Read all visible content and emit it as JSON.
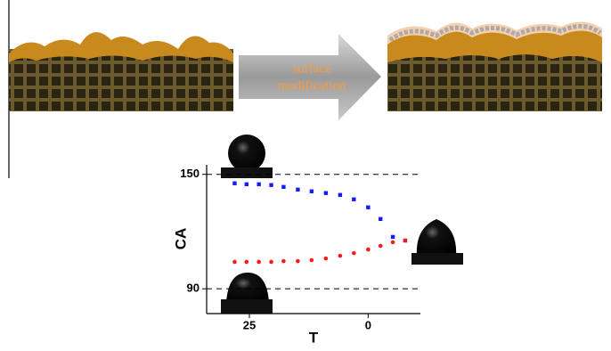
{
  "scheme": {
    "arrow_label": [
      "surface",
      "modification"
    ]
  },
  "chart_data": {
    "type": "scatter",
    "x_label": "T",
    "y_label": "CA",
    "x": [
      28.1,
      25.6,
      23.0,
      20.4,
      17.8,
      14.8,
      11.9,
      8.9,
      5.9,
      3.0,
      0,
      -2.6,
      -5.2,
      -7.8
    ],
    "series": [
      {
        "color": "#1a1aff",
        "marker": "square",
        "values": [
          145.3,
          144.8,
          144.8,
          144.4,
          143.4,
          142.0,
          141.1,
          140.2,
          139.2,
          136.9,
          132.7,
          126.6,
          117.2,
          115.3
        ]
      },
      {
        "color": "#ff1a1a",
        "marker": "circle",
        "values": [
          104.1,
          104.1,
          104.1,
          104.1,
          104.5,
          104.5,
          105.0,
          105.9,
          107.3,
          108.7,
          110.6,
          112.5,
          114.4,
          115.3
        ]
      }
    ],
    "xlim": [
      34,
      -11
    ],
    "xticks": [
      25,
      0
    ],
    "ylim": [
      77,
      155
    ],
    "yticks": [
      150,
      90
    ],
    "grid": "dashed"
  }
}
